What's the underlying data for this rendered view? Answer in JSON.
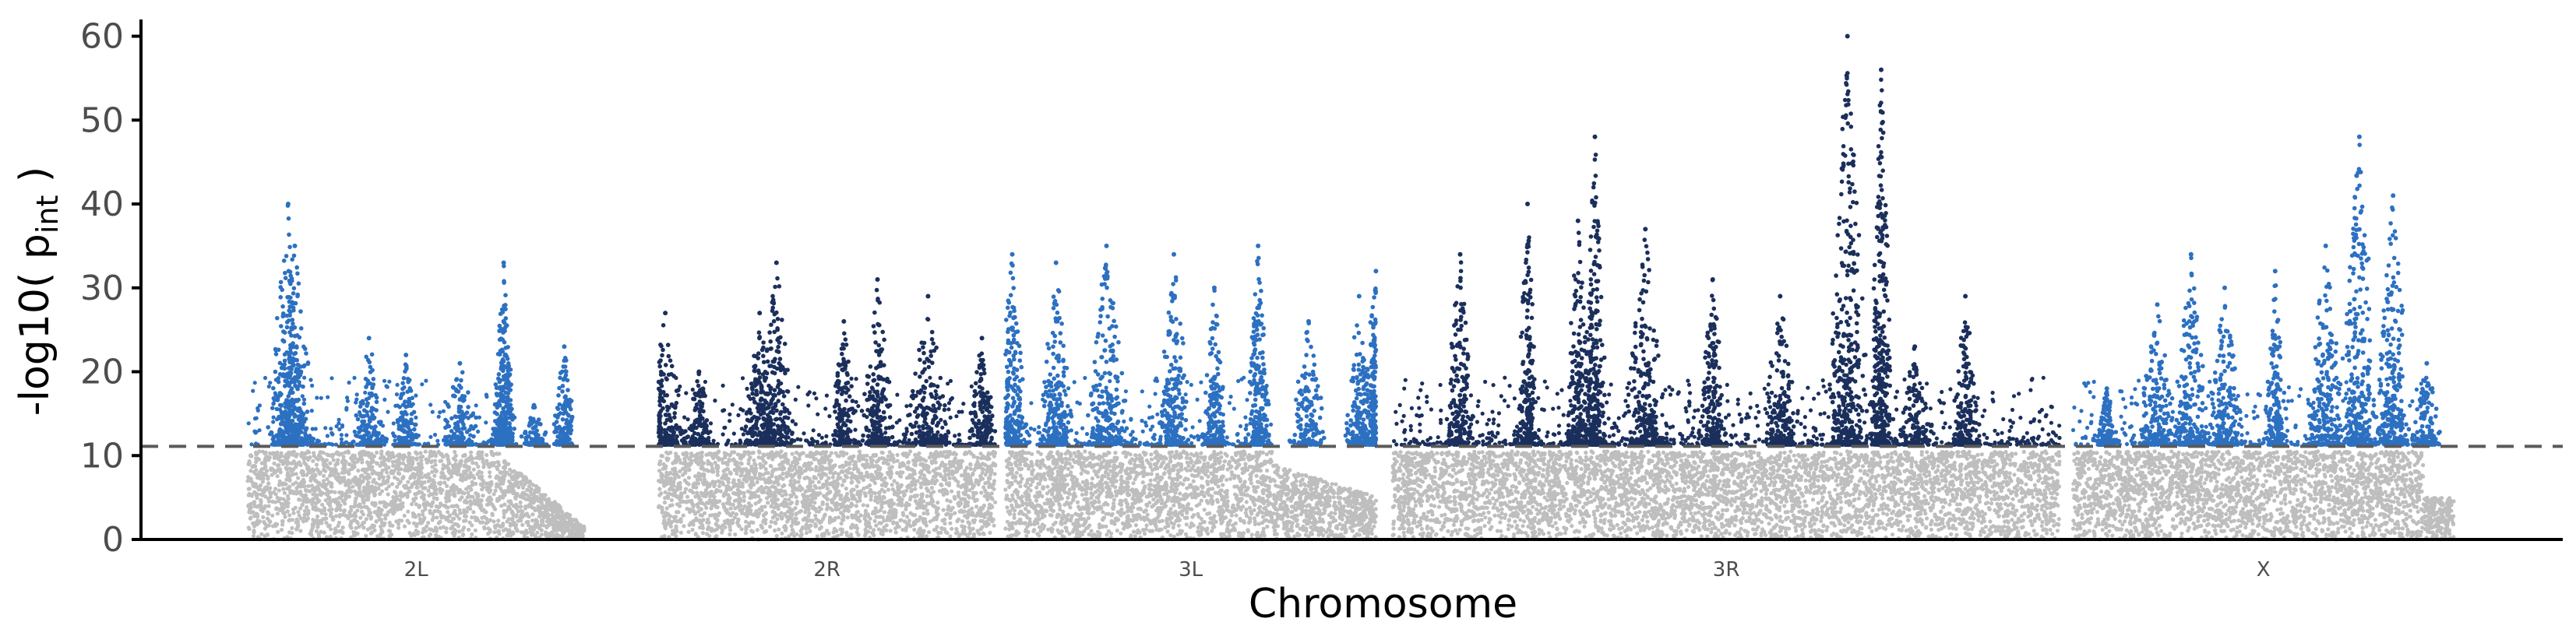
{
  "chart_data": {
    "type": "scatter",
    "title": "",
    "xlabel": "Chromosome",
    "ylabel": {
      "prefix": "-log10( p",
      "subscript": "int",
      "suffix": " )"
    },
    "ylim": [
      0,
      62
    ],
    "yticks": [
      0,
      10,
      20,
      30,
      40,
      50,
      60
    ],
    "threshold": 11.1,
    "grid": false,
    "legend": "none",
    "colors": {
      "below_threshold": "#bebebe",
      "light_blue": "#2c70c1",
      "dark_navy": "#1b2f5c",
      "threshold_line": "#5a5a5a",
      "axis": "#000000"
    },
    "chromosomes": [
      {
        "name": "2L",
        "color": "light_blue",
        "start": 0.0,
        "end": 1.0,
        "peaks": [
          [
            0.14,
            35
          ],
          [
            0.12,
            40
          ],
          [
            0.36,
            24
          ],
          [
            0.47,
            22
          ],
          [
            0.63,
            21
          ],
          [
            0.76,
            33
          ],
          [
            0.76,
            26
          ],
          [
            0.85,
            16
          ],
          [
            0.94,
            23
          ]
        ]
      },
      {
        "name": "2R",
        "color": "dark_navy",
        "start": 1.22,
        "end": 2.22,
        "peaks": [
          [
            0.02,
            27
          ],
          [
            0.12,
            20
          ],
          [
            0.3,
            27
          ],
          [
            0.35,
            33
          ],
          [
            0.55,
            26
          ],
          [
            0.65,
            31
          ],
          [
            0.8,
            29
          ],
          [
            0.96,
            24
          ]
        ]
      },
      {
        "name": "3L",
        "color": "light_blue",
        "start": 2.25,
        "end": 3.35,
        "peaks": [
          [
            0.02,
            34
          ],
          [
            0.15,
            33
          ],
          [
            0.3,
            35
          ],
          [
            0.5,
            34
          ],
          [
            0.62,
            30
          ],
          [
            0.75,
            35
          ],
          [
            0.9,
            26
          ],
          [
            1.05,
            29
          ],
          [
            1.1,
            32
          ]
        ]
      },
      {
        "name": "3R",
        "color": "dark_navy",
        "start": 3.4,
        "end": 5.38,
        "peaks": [
          [
            0.2,
            34
          ],
          [
            0.4,
            40
          ],
          [
            0.55,
            38
          ],
          [
            0.6,
            48
          ],
          [
            0.75,
            37
          ],
          [
            0.95,
            31
          ],
          [
            1.15,
            29
          ],
          [
            1.35,
            60
          ],
          [
            1.45,
            56
          ],
          [
            1.55,
            23
          ],
          [
            1.7,
            29
          ]
        ]
      },
      {
        "name": "X",
        "color": "light_blue",
        "start": 5.42,
        "end": 6.55,
        "peaks": [
          [
            0.1,
            18
          ],
          [
            0.25,
            28
          ],
          [
            0.35,
            34
          ],
          [
            0.45,
            30
          ],
          [
            0.6,
            32
          ],
          [
            0.75,
            35
          ],
          [
            0.85,
            48
          ],
          [
            0.95,
            41
          ],
          [
            1.05,
            21
          ]
        ]
      }
    ],
    "x_extent": [
      0,
      6.55
    ]
  }
}
